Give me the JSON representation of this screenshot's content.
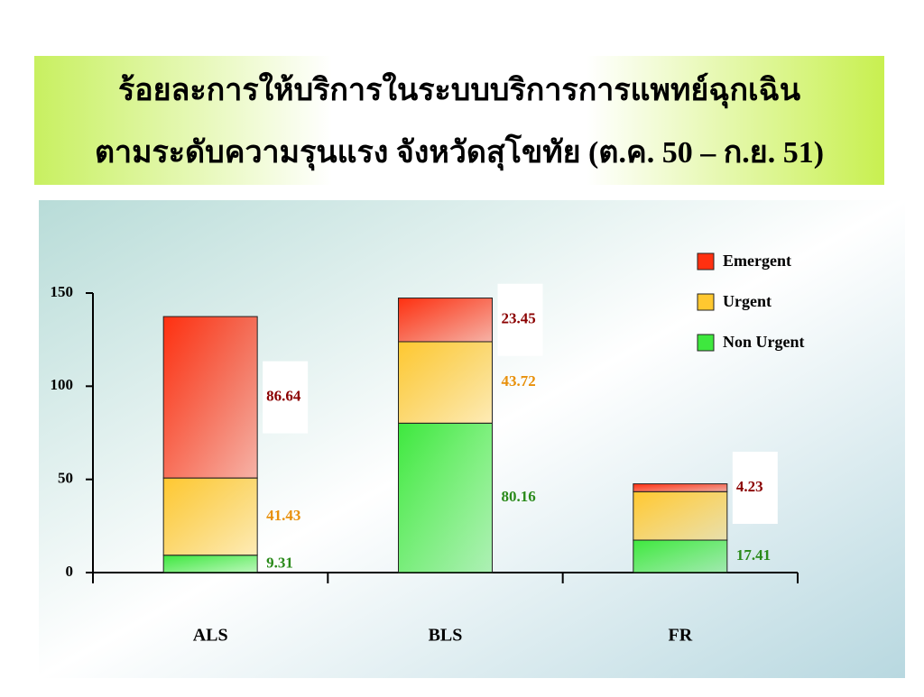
{
  "chart_data": {
    "type": "stacked-bar",
    "title": [
      "ร้อยละการให้บริการในระบบบริการการแพทย์ฉุกเฉิน",
      "ตามระดับความรุนแรง จังหวัดสุโขทัย (ต.ค. 50 – ก.ย. 51)"
    ],
    "categories": [
      "ALS",
      "BLS",
      "FR"
    ],
    "series": [
      {
        "name": "Non Urgent",
        "color": "#3ee83e",
        "label_color": "#2a8a1a",
        "values": [
          9.31,
          80.16,
          17.41
        ]
      },
      {
        "name": "Urgent",
        "color": "#ffc830",
        "label_color": "#e8900a",
        "values": [
          41.43,
          43.72,
          25.98
        ]
      },
      {
        "name": "Emergent",
        "color": "#ff3010",
        "label_color": "#8b0000",
        "values": [
          86.64,
          23.45,
          4.23
        ]
      }
    ],
    "ylim": [
      0,
      150
    ],
    "yticks": [
      0,
      50,
      100,
      150
    ],
    "legend": "top-right"
  }
}
